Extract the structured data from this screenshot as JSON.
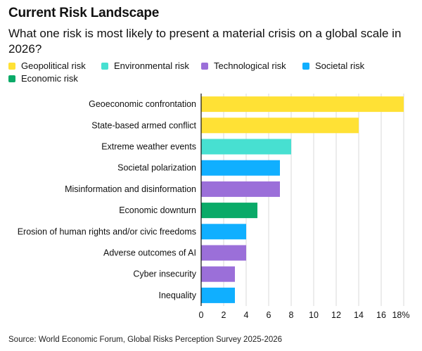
{
  "title": "Current Risk Landscape",
  "subtitle": "What one risk is most likely to present a material crisis on a global scale in 2026?",
  "legend": [
    {
      "label": "Geopolitical risk",
      "color": "#FFE135"
    },
    {
      "label": "Environmental risk",
      "color": "#47E0D1"
    },
    {
      "label": "Technological risk",
      "color": "#9B6FD9"
    },
    {
      "label": "Societal risk",
      "color": "#10AFFF"
    },
    {
      "label": "Economic risk",
      "color": "#0AAA68"
    }
  ],
  "source": "Source: World Economic Forum, Global Risks Perception Survey 2025-2026",
  "chart_data": {
    "type": "bar",
    "orientation": "horizontal",
    "title": "Current Risk Landscape",
    "xlabel": "",
    "ylabel": "",
    "xlim": [
      0,
      18
    ],
    "ticks": [
      "0",
      "2",
      "4",
      "6",
      "8",
      "10",
      "12",
      "14",
      "16",
      "18%"
    ],
    "grid": true,
    "categories": [
      "Geoeconomic confrontation",
      "State-based armed conflict",
      "Extreme weather events",
      "Societal polarization",
      "Misinformation and disinformation",
      "Economic downturn",
      "Erosion of human rights and/or civic freedoms",
      "Adverse outcomes of AI",
      "Cyber insecurity",
      "Inequality"
    ],
    "values": [
      18,
      14,
      8,
      7,
      7,
      5,
      4,
      4,
      3,
      3
    ],
    "risk_type": [
      "Geopolitical risk",
      "Geopolitical risk",
      "Environmental risk",
      "Societal risk",
      "Technological risk",
      "Economic risk",
      "Societal risk",
      "Technological risk",
      "Technological risk",
      "Societal risk"
    ]
  }
}
